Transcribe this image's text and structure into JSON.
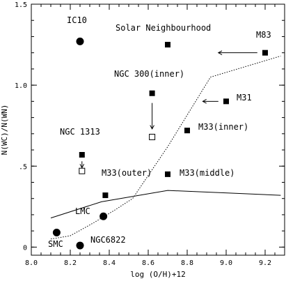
{
  "chart_data": {
    "type": "scatter",
    "xlabel": "log (O/H)+12",
    "ylabel": "N(WC)/N(WN)",
    "xlim": [
      8.0,
      9.3
    ],
    "ylim": [
      -0.05,
      1.5
    ],
    "x_ticks": [
      {
        "value": 8.0,
        "label": "8.0"
      },
      {
        "value": 8.2,
        "label": "8.2"
      },
      {
        "value": 8.4,
        "label": "8.4"
      },
      {
        "value": 8.6,
        "label": "8.6"
      },
      {
        "value": 8.8,
        "label": "8.8"
      },
      {
        "value": 9.0,
        "label": "9.0"
      },
      {
        "value": 9.2,
        "label": "9.2"
      }
    ],
    "y_ticks": [
      {
        "value": 0.0,
        "label": "0"
      },
      {
        "value": 0.5,
        "label": ".5"
      },
      {
        "value": 1.0,
        "label": "1.0"
      },
      {
        "value": 1.5,
        "label": "1.5"
      }
    ],
    "circles": [
      {
        "label": "IC10",
        "x": 8.25,
        "y": 1.27
      },
      {
        "label": "LMC",
        "x": 8.37,
        "y": 0.19
      },
      {
        "label": "SMC",
        "x": 8.13,
        "y": 0.09
      },
      {
        "label": "NGC6822",
        "x": 8.25,
        "y": 0.01
      }
    ],
    "filled_squares": [
      {
        "label": "Solar Neighbourhood",
        "x": 8.7,
        "y": 1.25
      },
      {
        "label": "M83",
        "x": 9.2,
        "y": 1.2
      },
      {
        "label": "NGC 300(inner)",
        "x": 8.62,
        "y": 0.95
      },
      {
        "label": "M31",
        "x": 9.0,
        "y": 0.9
      },
      {
        "label": "M33(inner)",
        "x": 8.8,
        "y": 0.72
      },
      {
        "label": "NGC 1313",
        "x": 8.26,
        "y": 0.57
      },
      {
        "label": "M33(middle)",
        "x": 8.7,
        "y": 0.45
      },
      {
        "label": "M33(outer)",
        "x": 8.38,
        "y": 0.32
      }
    ],
    "open_squares": [
      {
        "x": 8.62,
        "y": 0.68
      },
      {
        "x": 8.26,
        "y": 0.47
      }
    ],
    "arrows": [
      {
        "from": [
          8.62,
          0.89
        ],
        "to": [
          8.62,
          0.73
        ]
      },
      {
        "from": [
          8.26,
          0.53
        ],
        "to": [
          8.26,
          0.49
        ]
      },
      {
        "from": [
          9.16,
          1.2
        ],
        "to": [
          8.96,
          1.2
        ]
      },
      {
        "from": [
          8.96,
          0.9
        ],
        "to": [
          8.88,
          0.9
        ]
      }
    ],
    "solid_line": [
      [
        8.1,
        0.18
      ],
      [
        8.36,
        0.28
      ],
      [
        8.7,
        0.35
      ],
      [
        9.28,
        0.32
      ]
    ],
    "dotted_line": [
      [
        8.1,
        0.05
      ],
      [
        8.2,
        0.07
      ],
      [
        8.32,
        0.15
      ],
      [
        8.43,
        0.23
      ],
      [
        8.52,
        0.3
      ],
      [
        8.7,
        0.62
      ],
      [
        8.92,
        1.05
      ],
      [
        9.28,
        1.18
      ]
    ],
    "text_labels": {
      "ic10": "IC10",
      "solar": "Solar Neighbourhood",
      "m83": "M83",
      "ngc300": "NGC 300(inner)",
      "m31": "M31",
      "m33inner": "M33(inner)",
      "ngc1313": "NGC 1313",
      "m33outer": "M33(outer)",
      "m33middle": "M33(middle)",
      "lmc": "LMC",
      "smc": "SMC",
      "ngc6822": "NGC6822"
    }
  }
}
